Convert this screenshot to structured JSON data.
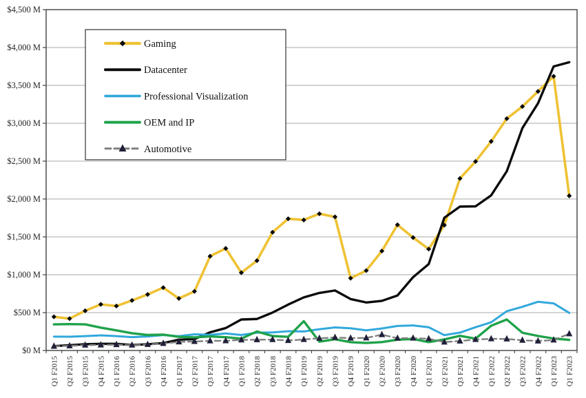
{
  "chart_data": {
    "type": "line",
    "title": "",
    "xlabel": "",
    "ylabel": "",
    "grid": "horizontal",
    "legend_position": "top-left-box",
    "y_axis": {
      "min": 0,
      "max": 4500,
      "step": 500
    },
    "y_tick_labels": [
      "$0 M",
      "$500 M",
      "$1,000 M",
      "$1,500 M",
      "$2,000 M",
      "$2,500 M",
      "$3,000 M",
      "$3,500 M",
      "$4,000 M",
      "$4,500 M"
    ],
    "categories": [
      "Q1 F2015",
      "Q2 F2015",
      "Q3 F2015",
      "Q4 F2015",
      "Q1 F2016",
      "Q2 F2016",
      "Q3 F2016",
      "Q4 F2016",
      "Q1 F2017",
      "Q2 F2017",
      "Q3 F2017",
      "Q4 F2017",
      "Q1 F2018",
      "Q2 F2018",
      "Q3 F2018",
      "Q4 F2018",
      "Q1 F2019",
      "Q2 F2019",
      "Q3 F2019",
      "Q4 F2019",
      "Q1 F2020",
      "Q2 F2020",
      "Q3 F2020",
      "Q4 F2020",
      "Q1 F2021",
      "Q2 F2021",
      "Q3 F2021",
      "Q4 F2021",
      "Q1 F2022",
      "Q2 F2022",
      "Q3 F2022",
      "Q4 F2022",
      "Q1 F2023",
      "Q1 F2023"
    ],
    "series": [
      {
        "name": "Gaming",
        "color": "#EFC233",
        "line_style": "solid",
        "marker": "diamond",
        "marker_color": "#0b0b0b",
        "values": [
          445,
          421,
          524,
          609,
          587,
          661,
          740,
          830,
          687,
          781,
          1244,
          1348,
          1027,
          1186,
          1561,
          1739,
          1723,
          1805,
          1764,
          954,
          1055,
          1313,
          1659,
          1491,
          1339,
          1654,
          2271,
          2495,
          2760,
          3061,
          3221,
          3420,
          3620,
          2042
        ]
      },
      {
        "name": "Datacenter",
        "color": "#0b0b0b",
        "line_style": "solid",
        "marker": "none",
        "marker_color": "",
        "values": [
          57,
          70,
          82,
          88,
          88,
          72,
          82,
          97,
          143,
          151,
          240,
          296,
          409,
          416,
          501,
          606,
          701,
          760,
          792,
          679,
          634,
          655,
          726,
          968,
          1141,
          1752,
          1900,
          1903,
          2048,
          2366,
          2936,
          3263,
          3750,
          3806
        ]
      },
      {
        "name": "Professional Visualization",
        "color": "#31A8DC",
        "line_style": "solid",
        "marker": "none",
        "marker_color": "",
        "values": [
          183,
          182,
          190,
          200,
          190,
          176,
          185,
          203,
          189,
          214,
          207,
          225,
          205,
          235,
          239,
          254,
          251,
          281,
          305,
          293,
          266,
          291,
          324,
          331,
          307,
          203,
          236,
          307,
          372,
          519,
          577,
          643,
          622,
          496
        ]
      },
      {
        "name": "OEM and IP",
        "color": "#1FA24A",
        "line_style": "solid",
        "marker": "none",
        "marker_color": "",
        "values": [
          345,
          348,
          345,
          302,
          265,
          228,
          205,
          210,
          180,
          173,
          186,
          176,
          156,
          251,
          191,
          180,
          387,
          116,
          148,
          110,
          99,
          111,
          143,
          152,
          111,
          146,
          194,
          156,
          327,
          409,
          234,
          192,
          158,
          140
        ]
      },
      {
        "name": "Automotive",
        "color": "#7F7F7F",
        "line_style": "dashed",
        "marker": "triangle",
        "marker_color": "#20203A",
        "values": [
          56,
          61,
          71,
          73,
          77,
          71,
          79,
          93,
          113,
          119,
          127,
          128,
          140,
          142,
          144,
          132,
          145,
          161,
          172,
          163,
          166,
          209,
          162,
          163,
          155,
          111,
          125,
          145,
          154,
          152,
          135,
          125,
          138,
          220
        ]
      }
    ],
    "colors": {
      "gridline": "#A9A9A9",
      "frame": "#404040",
      "tick_text": "#262626",
      "legend_text": "#111111",
      "background": "#ffffff"
    }
  }
}
